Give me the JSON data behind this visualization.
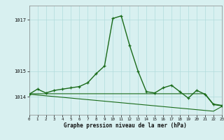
{
  "hours": [
    0,
    1,
    2,
    3,
    4,
    5,
    6,
    7,
    8,
    9,
    10,
    11,
    12,
    13,
    14,
    15,
    16,
    17,
    18,
    19,
    20,
    21,
    22,
    23
  ],
  "pressure_main": [
    1014.1,
    1014.3,
    1014.15,
    1014.25,
    1014.3,
    1014.35,
    1014.4,
    1014.55,
    1014.9,
    1015.2,
    1017.05,
    1017.15,
    1016.0,
    1015.0,
    1014.2,
    1014.15,
    1014.35,
    1014.45,
    1014.2,
    1013.95,
    1014.25,
    1014.1,
    1013.7,
    1013.65
  ],
  "pressure_line1": [
    1014.12,
    1014.12,
    1014.12,
    1014.12,
    1014.12,
    1014.12,
    1014.12,
    1014.12,
    1014.12,
    1014.12,
    1014.12,
    1014.12,
    1014.12,
    1014.12,
    1014.12,
    1014.12,
    1014.12,
    1014.12,
    1014.12,
    1014.12,
    1014.12,
    1014.12,
    1013.72,
    1013.67
  ],
  "pressure_line2": [
    1014.1,
    1014.07,
    1014.04,
    1014.01,
    1013.98,
    1013.95,
    1013.92,
    1013.89,
    1013.86,
    1013.83,
    1013.8,
    1013.77,
    1013.74,
    1013.71,
    1013.68,
    1013.65,
    1013.62,
    1013.59,
    1013.56,
    1013.53,
    1013.5,
    1013.47,
    1013.44,
    1013.62
  ],
  "background_color": "#d8f0f0",
  "grid_color": "#b0dcdc",
  "line_color": "#1a6b1a",
  "marker_color": "#1a6b1a",
  "yticks": [
    1014,
    1015,
    1017
  ],
  "ytick_labels": [
    "1014",
    "1015",
    ""
  ],
  "xlabel": "Graphe pression niveau de la mer (hPa)",
  "ylim_min": 1013.3,
  "ylim_max": 1017.55,
  "xlim_min": 0,
  "xlim_max": 23
}
